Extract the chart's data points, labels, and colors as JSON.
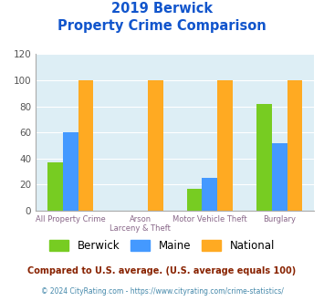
{
  "title_line1": "2019 Berwick",
  "title_line2": "Property Crime Comparison",
  "berwick": [
    37,
    0,
    17,
    82
  ],
  "maine": [
    60,
    0,
    25,
    52
  ],
  "national": [
    100,
    100,
    100,
    100
  ],
  "berwick_color": "#77cc22",
  "maine_color": "#4499ff",
  "national_color": "#ffaa22",
  "ylim": [
    0,
    120
  ],
  "yticks": [
    0,
    20,
    40,
    60,
    80,
    100,
    120
  ],
  "bg_color": "#ddeef5",
  "legend_labels": [
    "Berwick",
    "Maine",
    "National"
  ],
  "top_labels": [
    "All Property Crime",
    "Arson",
    "Motor Vehicle Theft",
    "Burglary"
  ],
  "bot_labels": [
    "",
    "Larceny & Theft",
    "",
    ""
  ],
  "footer_text1": "Compared to U.S. average. (U.S. average equals 100)",
  "footer_text2": "© 2024 CityRating.com - https://www.cityrating.com/crime-statistics/",
  "title_color": "#1155cc",
  "footer1_color": "#882200",
  "footer2_color": "#4488aa",
  "label_color": "#886688"
}
